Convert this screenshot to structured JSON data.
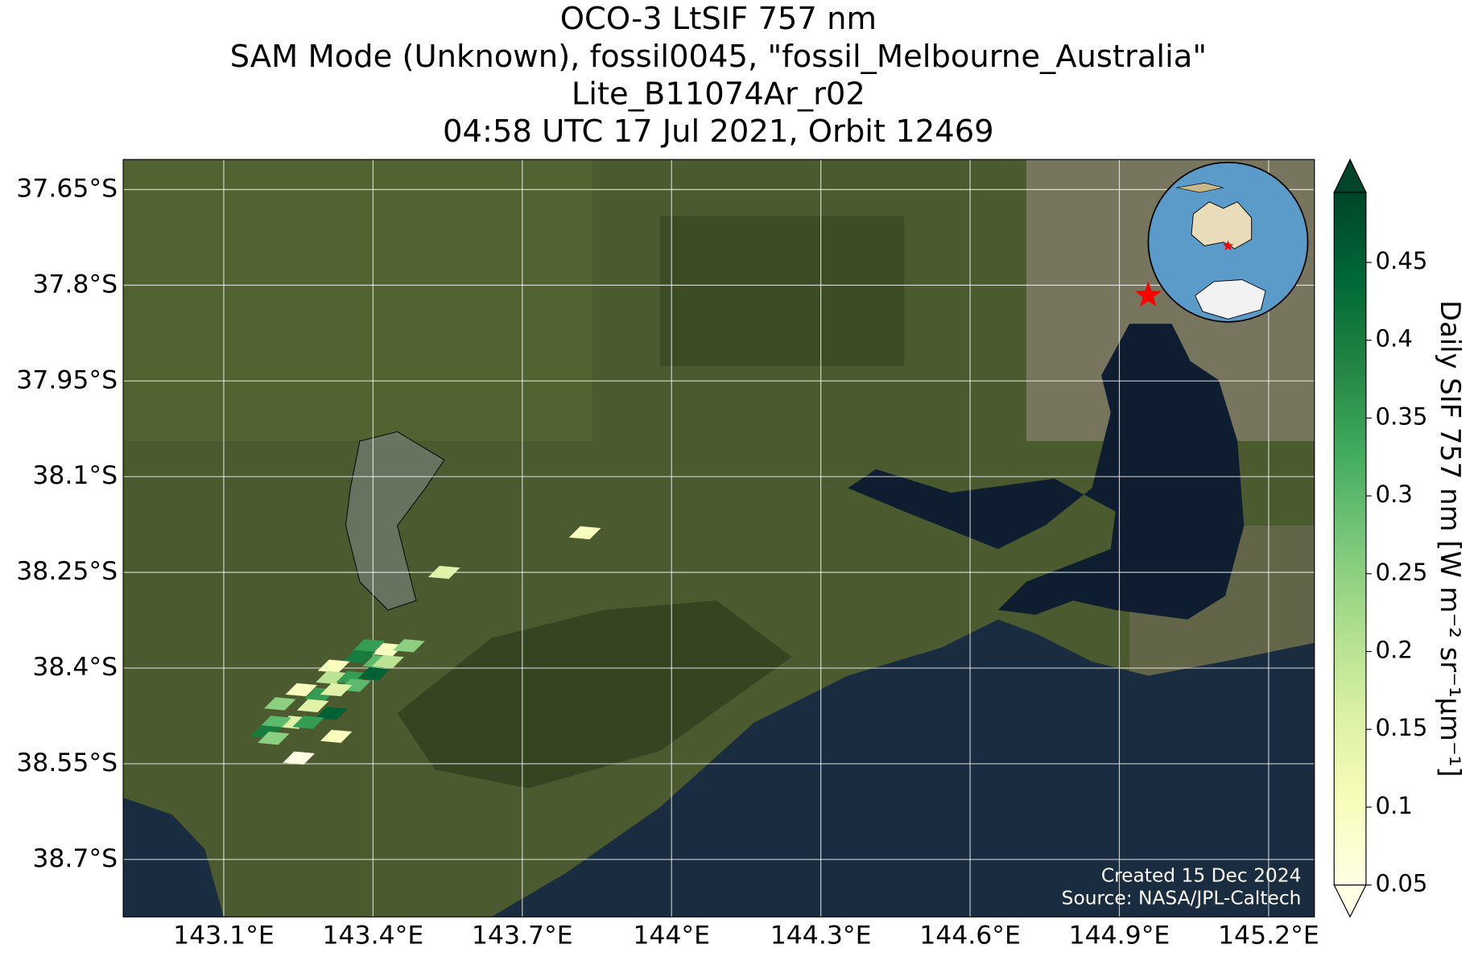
{
  "chart_data": {
    "type": "scatter",
    "title": [
      "OCO-3 LtSIF 757 nm",
      "SAM Mode (Unknown), fossil0045, \"fossil_Melbourne_Australia\"",
      "Lite_B11074Ar_r02",
      "04:58 UTC 17 Jul 2021, Orbit 12469"
    ],
    "x": [
      143.826,
      143.543,
      143.392,
      143.43,
      143.472,
      143.373,
      143.411,
      143.321,
      143.317,
      143.358,
      143.402,
      143.43,
      143.294,
      143.364,
      143.256,
      143.326,
      143.279,
      143.213,
      143.317,
      143.241,
      143.204,
      143.27,
      143.185,
      143.326,
      143.2,
      143.251
    ],
    "values": [
      -38.188,
      -38.25,
      -38.365,
      -38.371,
      -38.365,
      -38.382,
      -38.39,
      -38.397,
      -38.415,
      -38.415,
      -38.409,
      -38.39,
      -38.441,
      -38.427,
      -38.434,
      -38.434,
      -38.459,
      -38.456,
      -38.471,
      -38.485,
      -38.485,
      -38.485,
      -38.5,
      -38.507,
      -38.51,
      -38.541
    ],
    "color_values": [
      0.1,
      0.15,
      0.35,
      0.1,
      0.25,
      0.4,
      0.3,
      0.1,
      0.2,
      0.35,
      0.45,
      0.2,
      0.35,
      0.3,
      0.1,
      0.15,
      0.15,
      0.25,
      0.45,
      0.15,
      0.3,
      0.35,
      0.4,
      0.1,
      0.25,
      0.05
    ],
    "site": {
      "lon": 144.958,
      "lat": -37.816,
      "color": "#ff0000"
    },
    "xlim": [
      142.898,
      145.292
    ],
    "ylim": [
      -38.79,
      -37.603
    ],
    "xticks": [
      {
        "value": 143.1,
        "label": "143.1°E"
      },
      {
        "value": 143.4,
        "label": "143.4°E"
      },
      {
        "value": 143.7,
        "label": "143.7°E"
      },
      {
        "value": 144.0,
        "label": "144°E"
      },
      {
        "value": 144.3,
        "label": "144.3°E"
      },
      {
        "value": 144.6,
        "label": "144.6°E"
      },
      {
        "value": 144.9,
        "label": "144.9°E"
      },
      {
        "value": 145.2,
        "label": "145.2°E"
      }
    ],
    "yticks": [
      {
        "value": -37.65,
        "label": "37.65°S"
      },
      {
        "value": -37.8,
        "label": "37.8°S"
      },
      {
        "value": -37.95,
        "label": "37.95°S"
      },
      {
        "value": -38.1,
        "label": "38.1°S"
      },
      {
        "value": -38.25,
        "label": "38.25°S"
      },
      {
        "value": -38.4,
        "label": "38.4°S"
      },
      {
        "value": -38.55,
        "label": "38.55°S"
      },
      {
        "value": -38.7,
        "label": "38.7°S"
      }
    ],
    "grid": true,
    "colorbar": {
      "label": "Daily SIF 757 nm [W m⁻² sr⁻¹μm⁻¹]",
      "lim": [
        0.05,
        0.495
      ],
      "ticks": [
        0.05,
        0.1,
        0.15,
        0.2,
        0.25,
        0.3,
        0.35,
        0.4,
        0.45
      ],
      "colors": [
        "#ffffe5",
        "#f7fcb9",
        "#d9f0a3",
        "#addd8e",
        "#78c679",
        "#41ab5d",
        "#238443",
        "#006837",
        "#004529"
      ]
    },
    "annotations": [
      "Created 15 Dec 2024",
      "Source: NASA/JPL-Caltech"
    ]
  }
}
